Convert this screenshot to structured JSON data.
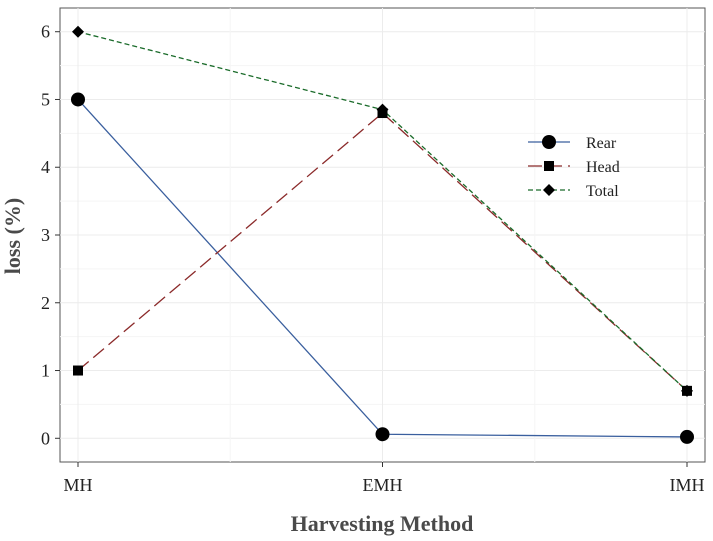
{
  "chart_data": {
    "type": "line",
    "xlabel": "Harvesting Method",
    "ylabel": "loss (%)",
    "categories": [
      "MH",
      "EMH",
      "IMH"
    ],
    "ylim": [
      -0.35,
      6.35
    ],
    "yticks": [
      0,
      1,
      2,
      3,
      4,
      5,
      6
    ],
    "grid": true,
    "legend_position": "right",
    "series": [
      {
        "name": "Rear",
        "values": [
          5.0,
          0.06,
          0.02
        ],
        "color": "#3a5f9e",
        "dash": "solid",
        "marker": "circle"
      },
      {
        "name": "Head",
        "values": [
          1.0,
          4.8,
          0.7
        ],
        "color": "#8b2a2a",
        "dash": "long-dash",
        "marker": "square"
      },
      {
        "name": "Total",
        "values": [
          6.0,
          4.85,
          0.7
        ],
        "color": "#1a6b2a",
        "dash": "short-dash",
        "marker": "diamond"
      }
    ]
  }
}
